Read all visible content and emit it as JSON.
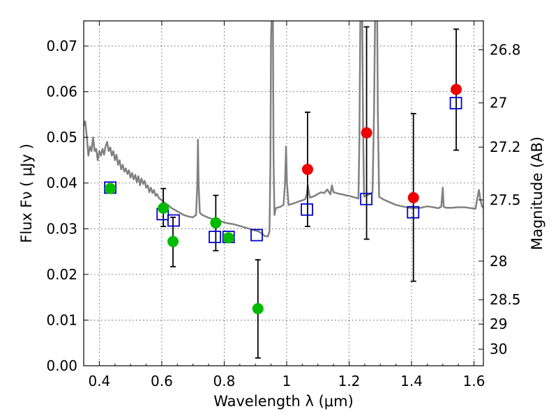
{
  "chart_data": {
    "type": "scatter",
    "xlabel": "Wavelength  λ (μm)",
    "ylabel": "Flux  Fν  ( μJy )",
    "y2label": "Magnitude (AB)",
    "xlim": [
      0.35,
      1.63
    ],
    "ylim": [
      0.0,
      0.0755
    ],
    "x_ticks": [
      0.4,
      0.6,
      0.8,
      1.0,
      1.2,
      1.4,
      1.6
    ],
    "x_tick_labels": [
      "0.4",
      "0.6",
      "0.8",
      "1",
      "1.2",
      "1.4",
      "1.6"
    ],
    "y_ticks": [
      0.0,
      0.01,
      0.02,
      0.03,
      0.04,
      0.05,
      0.06,
      0.07
    ],
    "y_tick_labels": [
      "0.00",
      "0.01",
      "0.02",
      "0.03",
      "0.04",
      "0.05",
      "0.06",
      "0.07"
    ],
    "mag_ticks": [
      26.8,
      27,
      27.2,
      27.5,
      28,
      28.5,
      29,
      30
    ],
    "mag_tick_labels": [
      "26.8",
      "27",
      "27.2",
      "27.5",
      "28",
      "28.5",
      "29",
      "30"
    ],
    "grid": true,
    "series": [
      {
        "kind": "model-spectrum",
        "color": "#808080",
        "points": [
          [
            0.35,
            0.0525
          ],
          [
            0.355,
            0.0535
          ],
          [
            0.36,
            0.05
          ],
          [
            0.365,
            0.046
          ],
          [
            0.37,
            0.048
          ],
          [
            0.375,
            0.047
          ],
          [
            0.38,
            0.05
          ],
          [
            0.385,
            0.047
          ],
          [
            0.39,
            0.0475
          ],
          [
            0.395,
            0.045
          ],
          [
            0.4,
            0.047
          ],
          [
            0.405,
            0.046
          ],
          [
            0.41,
            0.0475
          ],
          [
            0.415,
            0.0462
          ],
          [
            0.42,
            0.048
          ],
          [
            0.425,
            0.049
          ],
          [
            0.43,
            0.047
          ],
          [
            0.435,
            0.0478
          ],
          [
            0.44,
            0.046
          ],
          [
            0.445,
            0.047
          ],
          [
            0.45,
            0.045
          ],
          [
            0.455,
            0.0462
          ],
          [
            0.46,
            0.044
          ],
          [
            0.465,
            0.045
          ],
          [
            0.47,
            0.043
          ],
          [
            0.475,
            0.044
          ],
          [
            0.48,
            0.0425
          ],
          [
            0.485,
            0.0432
          ],
          [
            0.49,
            0.042
          ],
          [
            0.495,
            0.0428
          ],
          [
            0.5,
            0.0412
          ],
          [
            0.505,
            0.0422
          ],
          [
            0.51,
            0.0408
          ],
          [
            0.515,
            0.0418
          ],
          [
            0.52,
            0.0402
          ],
          [
            0.525,
            0.0415
          ],
          [
            0.53,
            0.0395
          ],
          [
            0.535,
            0.041
          ],
          [
            0.54,
            0.0398
          ],
          [
            0.545,
            0.0405
          ],
          [
            0.55,
            0.039
          ],
          [
            0.555,
            0.0395
          ],
          [
            0.56,
            0.038
          ],
          [
            0.565,
            0.039
          ],
          [
            0.57,
            0.0378
          ],
          [
            0.575,
            0.0385
          ],
          [
            0.58,
            0.0372
          ],
          [
            0.585,
            0.0376
          ],
          [
            0.59,
            0.0368
          ],
          [
            0.6,
            0.0362
          ],
          [
            0.61,
            0.0356
          ],
          [
            0.62,
            0.0352
          ],
          [
            0.63,
            0.0346
          ],
          [
            0.64,
            0.0342
          ],
          [
            0.65,
            0.0338
          ],
          [
            0.66,
            0.0334
          ],
          [
            0.67,
            0.033
          ],
          [
            0.68,
            0.0328
          ],
          [
            0.69,
            0.0326
          ],
          [
            0.7,
            0.0325
          ],
          [
            0.705,
            0.0328
          ],
          [
            0.71,
            0.033
          ],
          [
            0.714,
            0.04
          ],
          [
            0.716,
            0.0495
          ],
          [
            0.718,
            0.04
          ],
          [
            0.722,
            0.0335
          ],
          [
            0.73,
            0.033
          ],
          [
            0.74,
            0.0327
          ],
          [
            0.75,
            0.0324
          ],
          [
            0.76,
            0.0322
          ],
          [
            0.77,
            0.032
          ],
          [
            0.78,
            0.0318
          ],
          [
            0.79,
            0.0316
          ],
          [
            0.8,
            0.0314
          ],
          [
            0.81,
            0.0312
          ],
          [
            0.82,
            0.0311
          ],
          [
            0.83,
            0.031
          ],
          [
            0.84,
            0.0308
          ],
          [
            0.85,
            0.0306
          ],
          [
            0.86,
            0.0304
          ],
          [
            0.87,
            0.0302
          ],
          [
            0.88,
            0.03
          ],
          [
            0.89,
            0.0298
          ],
          [
            0.9,
            0.0296
          ],
          [
            0.91,
            0.0294
          ],
          [
            0.92,
            0.029
          ],
          [
            0.93,
            0.0284
          ],
          [
            0.94,
            0.0283
          ],
          [
            0.945,
            0.0295
          ],
          [
            0.948,
            0.045
          ],
          [
            0.95,
            0.072
          ],
          [
            0.952,
            0.076
          ],
          [
            0.956,
            0.076
          ],
          [
            0.958,
            0.045
          ],
          [
            0.961,
            0.033
          ],
          [
            0.965,
            0.0345
          ],
          [
            0.98,
            0.0348
          ],
          [
            0.99,
            0.0352
          ],
          [
            0.995,
            0.04
          ],
          [
            0.998,
            0.048
          ],
          [
            1.001,
            0.04
          ],
          [
            1.006,
            0.0352
          ],
          [
            1.02,
            0.0355
          ],
          [
            1.04,
            0.036
          ],
          [
            1.05,
            0.0362
          ],
          [
            1.06,
            0.0365
          ],
          [
            1.065,
            0.0378
          ],
          [
            1.068,
            0.0395
          ],
          [
            1.071,
            0.038
          ],
          [
            1.075,
            0.0368
          ],
          [
            1.09,
            0.0372
          ],
          [
            1.1,
            0.0376
          ],
          [
            1.11,
            0.038
          ],
          [
            1.12,
            0.0378
          ],
          [
            1.13,
            0.0386
          ],
          [
            1.14,
            0.0375
          ],
          [
            1.145,
            0.0395
          ],
          [
            1.15,
            0.038
          ],
          [
            1.16,
            0.0378
          ],
          [
            1.17,
            0.0376
          ],
          [
            1.18,
            0.0375
          ],
          [
            1.19,
            0.0373
          ],
          [
            1.2,
            0.0372
          ],
          [
            1.21,
            0.037
          ],
          [
            1.22,
            0.0368
          ],
          [
            1.23,
            0.0366
          ],
          [
            1.233,
            0.05
          ],
          [
            1.236,
            0.076
          ],
          [
            1.242,
            0.076
          ],
          [
            1.245,
            0.05
          ],
          [
            1.248,
            0.037
          ],
          [
            1.252,
            0.0372
          ],
          [
            1.265,
            0.0375
          ],
          [
            1.275,
            0.038
          ],
          [
            1.28,
            0.056
          ],
          [
            1.283,
            0.076
          ],
          [
            1.29,
            0.076
          ],
          [
            1.292,
            0.056
          ],
          [
            1.296,
            0.037
          ],
          [
            1.31,
            0.0364
          ],
          [
            1.33,
            0.0358
          ],
          [
            1.35,
            0.0352
          ],
          [
            1.37,
            0.0349
          ],
          [
            1.39,
            0.0346
          ],
          [
            1.41,
            0.0345
          ],
          [
            1.43,
            0.0346
          ],
          [
            1.45,
            0.0349
          ],
          [
            1.47,
            0.0347
          ],
          [
            1.485,
            0.0345
          ],
          [
            1.495,
            0.0348
          ],
          [
            1.5,
            0.039
          ],
          [
            1.503,
            0.0348
          ],
          [
            1.51,
            0.0346
          ],
          [
            1.53,
            0.0346
          ],
          [
            1.55,
            0.0347
          ],
          [
            1.57,
            0.0347
          ],
          [
            1.59,
            0.0345
          ],
          [
            1.605,
            0.0344
          ],
          [
            1.612,
            0.0372
          ],
          [
            1.616,
            0.0385
          ],
          [
            1.62,
            0.0365
          ],
          [
            1.625,
            0.035
          ],
          [
            1.63,
            0.0345
          ]
        ]
      },
      {
        "kind": "model-photometry",
        "marker": "square",
        "color": "#0000cc",
        "points": [
          {
            "x": 0.435,
            "y": 0.039
          },
          {
            "x": 0.603,
            "y": 0.0332
          },
          {
            "x": 0.638,
            "y": 0.0318
          },
          {
            "x": 0.77,
            "y": 0.0282
          },
          {
            "x": 0.814,
            "y": 0.0282
          },
          {
            "x": 0.904,
            "y": 0.0286
          },
          {
            "x": 1.065,
            "y": 0.0342
          },
          {
            "x": 1.255,
            "y": 0.0365
          },
          {
            "x": 1.405,
            "y": 0.0336
          },
          {
            "x": 1.542,
            "y": 0.0575
          }
        ]
      },
      {
        "kind": "observed-detections",
        "marker": "circle",
        "color": "#00bb00",
        "points": [
          {
            "x": 0.435,
            "y": 0.0388,
            "yerr_lo": 0.0388,
            "yerr_hi": 0.0388
          },
          {
            "x": 0.605,
            "y": 0.0345,
            "yerr_lo": 0.0305,
            "yerr_hi": 0.0388
          },
          {
            "x": 0.636,
            "y": 0.0272,
            "yerr_lo": 0.0217,
            "yerr_hi": 0.0325
          },
          {
            "x": 0.773,
            "y": 0.0313,
            "yerr_lo": 0.0252,
            "yerr_hi": 0.0373
          },
          {
            "x": 0.814,
            "y": 0.028,
            "yerr_lo": 0.028,
            "yerr_hi": 0.028
          },
          {
            "x": 0.908,
            "y": 0.0125,
            "yerr_lo": 0.0017,
            "yerr_hi": 0.0232
          }
        ]
      },
      {
        "kind": "observed-nir",
        "marker": "circle",
        "color": "#ee0000",
        "points": [
          {
            "x": 1.067,
            "y": 0.043,
            "yerr_lo": 0.0305,
            "yerr_hi": 0.0555
          },
          {
            "x": 1.256,
            "y": 0.051,
            "yerr_lo": 0.0277,
            "yerr_hi": 0.0742
          },
          {
            "x": 1.406,
            "y": 0.0368,
            "yerr_lo": 0.0185,
            "yerr_hi": 0.0552
          },
          {
            "x": 1.543,
            "y": 0.0605,
            "yerr_lo": 0.0472,
            "yerr_hi": 0.0737
          }
        ]
      }
    ]
  }
}
